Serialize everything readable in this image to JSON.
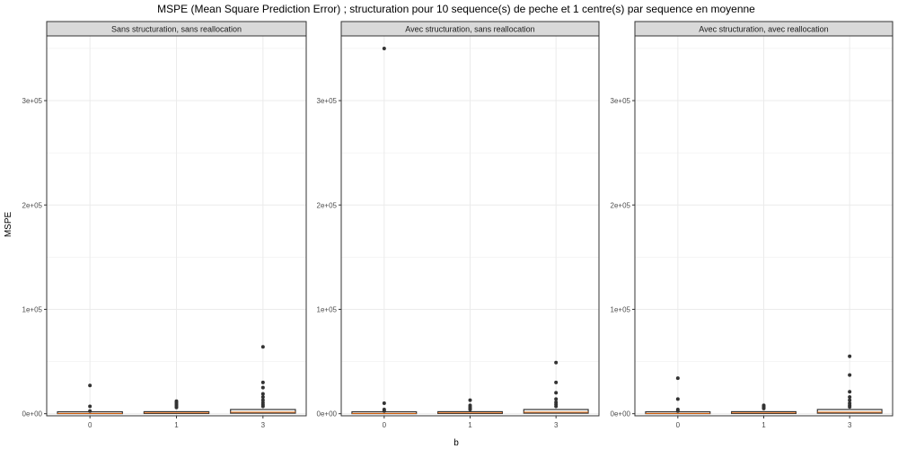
{
  "chart_data": {
    "type": "boxplot",
    "title": "MSPE (Mean Square Prediction Error) ; structuration pour 10 sequence(s) de peche et 1 centre(s) par sequence en moyenne",
    "xlabel": "b",
    "ylabel": "MSPE",
    "categories": [
      "0",
      "1",
      "3"
    ],
    "ylim": [
      -2000,
      362000
    ],
    "yticks": [
      0,
      100000,
      200000,
      300000
    ],
    "ytick_labels": [
      "0e+00",
      "1e+05",
      "2e+05",
      "3e+05"
    ],
    "colors": {
      "outlier": "#333333",
      "box": "#333333",
      "median": "#ff6a00",
      "grid": "#ebebeb",
      "strip": "#d9d9d9"
    },
    "panels": [
      {
        "title": "Sans structuration, sans reallocation",
        "boxes": [
          {
            "category": "0",
            "q1": 100,
            "median": 300,
            "q3": 600,
            "outliers": [
              27000,
              7000,
              2500
            ]
          },
          {
            "category": "1",
            "q1": 200,
            "median": 800,
            "q3": 1800,
            "outliers": [
              12000,
              10500,
              9000,
              7500,
              6000
            ]
          },
          {
            "category": "3",
            "q1": 500,
            "median": 1500,
            "q3": 4000,
            "outliers": [
              64000,
              30000,
              25000,
              19000,
              16000,
              13000,
              10500,
              8500,
              7000
            ]
          }
        ]
      },
      {
        "title": "Avec structuration, sans reallocation",
        "boxes": [
          {
            "category": "0",
            "q1": 100,
            "median": 300,
            "q3": 700,
            "outliers": [
              350000,
              10000,
              4000,
              2500
            ]
          },
          {
            "category": "1",
            "q1": 200,
            "median": 800,
            "q3": 1800,
            "outliers": [
              13000,
              8000,
              6500,
              5000,
              4000
            ]
          },
          {
            "category": "3",
            "q1": 500,
            "median": 1500,
            "q3": 4000,
            "outliers": [
              49000,
              30000,
              20000,
              14000,
              11000,
              9000,
              7000
            ]
          }
        ]
      },
      {
        "title": "Avec structuration, avec reallocation",
        "boxes": [
          {
            "category": "0",
            "q1": 100,
            "median": 300,
            "q3": 600,
            "outliers": [
              34000,
              14000,
              4000,
              2500
            ]
          },
          {
            "category": "1",
            "q1": 200,
            "median": 800,
            "q3": 1800,
            "outliers": [
              8000,
              7000,
              6000,
              5000
            ]
          },
          {
            "category": "3",
            "q1": 500,
            "median": 1500,
            "q3": 4000,
            "outliers": [
              55000,
              37000,
              21000,
              16000,
              13000,
              10000,
              8000,
              6500
            ]
          }
        ]
      }
    ]
  }
}
